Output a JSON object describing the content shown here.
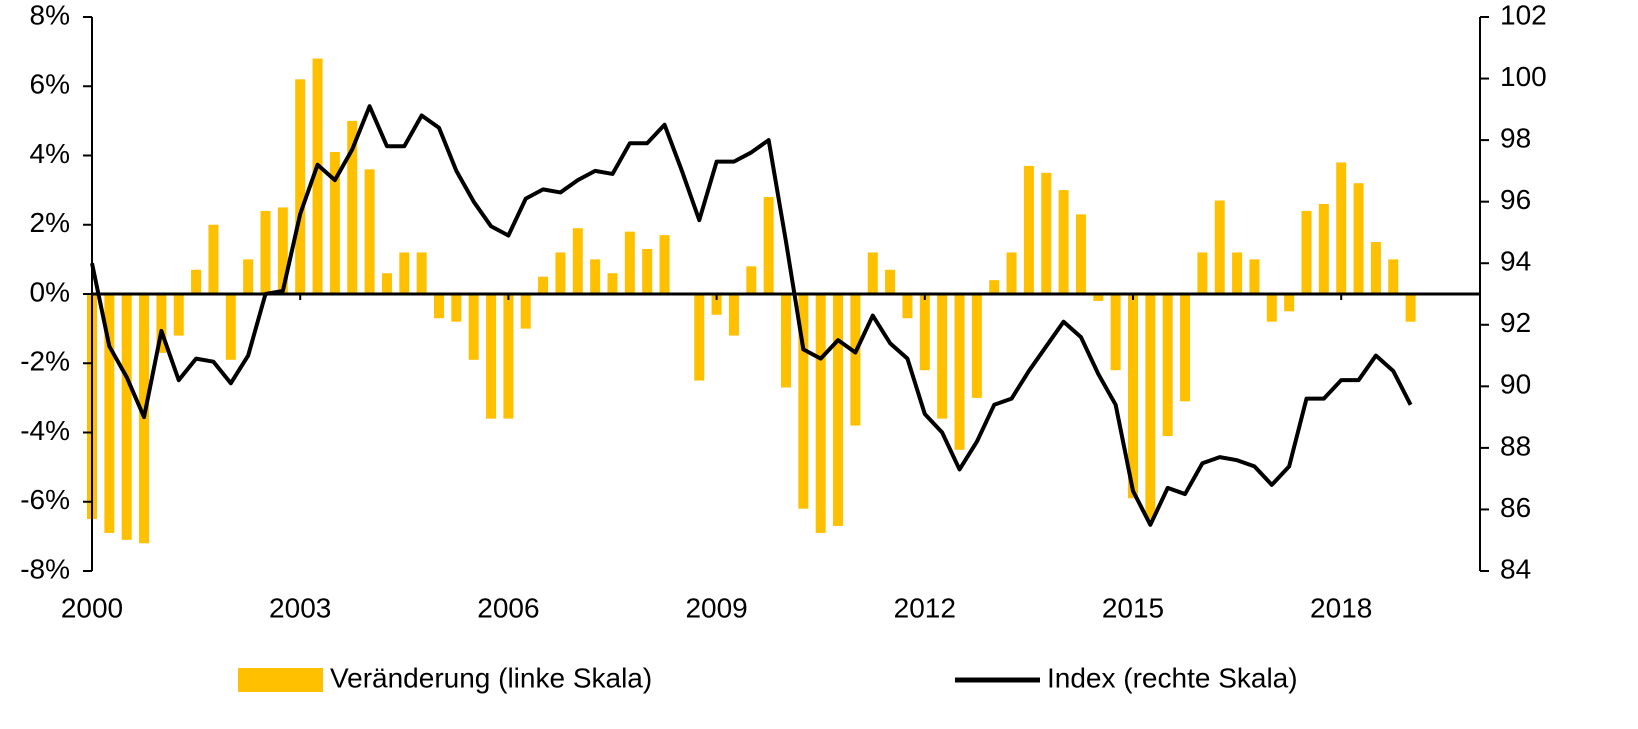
{
  "chart_data": {
    "type": "bar_line",
    "x": [
      2000,
      2000.25,
      2000.5,
      2000.75,
      2001,
      2001.25,
      2001.5,
      2001.75,
      2002,
      2002.25,
      2002.5,
      2002.75,
      2003,
      2003.25,
      2003.5,
      2003.75,
      2004,
      2004.25,
      2004.5,
      2004.75,
      2005,
      2005.25,
      2005.5,
      2005.75,
      2006,
      2006.25,
      2006.5,
      2006.75,
      2007,
      2007.25,
      2007.5,
      2007.75,
      2008,
      2008.25,
      2008.5,
      2008.75,
      2009,
      2009.25,
      2009.5,
      2009.75,
      2010,
      2010.25,
      2010.5,
      2010.75,
      2011,
      2011.25,
      2011.5,
      2011.75,
      2012,
      2012.25,
      2012.5,
      2012.75,
      2013,
      2013.25,
      2013.5,
      2013.75,
      2014,
      2014.25,
      2014.5,
      2014.75,
      2015,
      2015.25,
      2015.5,
      2015.75,
      2016,
      2016.25,
      2016.5,
      2016.75,
      2017,
      2017.25,
      2017.5,
      2017.75,
      2018,
      2018.25,
      2018.5,
      2018.75,
      2019
    ],
    "series": [
      {
        "name": "Veränderung (linke Skala)",
        "color": "#ffc000",
        "kind": "bar",
        "values": [
          -6.5,
          -6.9,
          -7.1,
          -7.2,
          -1.7,
          -1.2,
          0.7,
          2.0,
          -1.9,
          1.0,
          2.4,
          2.5,
          6.2,
          6.8,
          4.1,
          5.0,
          3.6,
          0.6,
          1.2,
          1.2,
          -0.7,
          -0.8,
          -1.9,
          -3.6,
          -3.6,
          -1.0,
          0.5,
          1.2,
          1.9,
          1.0,
          0.6,
          1.8,
          1.3,
          1.7,
          0,
          -2.5,
          -0.6,
          -1.2,
          0.8,
          2.8,
          -2.7,
          -6.2,
          -6.9,
          -6.7,
          -3.8,
          1.2,
          0.7,
          -0.7,
          -2.2,
          -3.6,
          -4.5,
          -3.0,
          0.4,
          1.2,
          3.7,
          3.5,
          3.0,
          2.3,
          -0.2,
          -2.2,
          -5.9,
          -6.5,
          -4.1,
          -3.1,
          1.2,
          2.7,
          1.2,
          1.0,
          -0.8,
          -0.5,
          2.4,
          2.6,
          3.8,
          3.2,
          1.5,
          1.0,
          -0.8
        ]
      },
      {
        "name": "Index (rechte Skala)",
        "color": "#000000",
        "kind": "line",
        "axis": "y2",
        "values": [
          94.0,
          91.3,
          90.3,
          89.0,
          91.8,
          90.2,
          90.9,
          90.8,
          90.1,
          91.0,
          93.0,
          93.1,
          95.6,
          97.2,
          96.7,
          97.7,
          99.1,
          97.8,
          97.8,
          98.8,
          98.4,
          97.0,
          96.0,
          95.2,
          94.9,
          96.1,
          96.4,
          96.3,
          96.7,
          97.0,
          96.9,
          97.9,
          97.9,
          98.5,
          97.0,
          95.4,
          97.3,
          97.3,
          97.6,
          98.0,
          94.7,
          91.2,
          90.9,
          91.5,
          91.1,
          92.3,
          91.4,
          90.9,
          89.1,
          88.5,
          87.3,
          88.2,
          89.4,
          89.6,
          90.5,
          91.3,
          92.1,
          91.6,
          90.4,
          89.4,
          86.6,
          85.5,
          86.7,
          86.5,
          87.5,
          87.7,
          87.6,
          87.4,
          86.8,
          87.4,
          89.6,
          89.6,
          90.2,
          90.2,
          91.0,
          90.5,
          89.4
        ]
      }
    ],
    "xlim": [
      2000,
      2020
    ],
    "xticks": [
      2000,
      2003,
      2006,
      2009,
      2012,
      2015,
      2018
    ],
    "ylim": [
      -8,
      8
    ],
    "yticks": [
      {
        "value": -8,
        "label": "-8%"
      },
      {
        "value": -6,
        "label": "-6%"
      },
      {
        "value": -4,
        "label": "-4%"
      },
      {
        "value": -2,
        "label": "-2%"
      },
      {
        "value": 0,
        "label": "0%"
      },
      {
        "value": 2,
        "label": "2%"
      },
      {
        "value": 4,
        "label": "4%"
      },
      {
        "value": 6,
        "label": "6%"
      },
      {
        "value": 8,
        "label": "8%"
      }
    ],
    "y2lim": [
      84,
      102
    ],
    "y2ticks": [
      84,
      86,
      88,
      90,
      92,
      94,
      96,
      98,
      100,
      102
    ],
    "legend": "bottom"
  }
}
